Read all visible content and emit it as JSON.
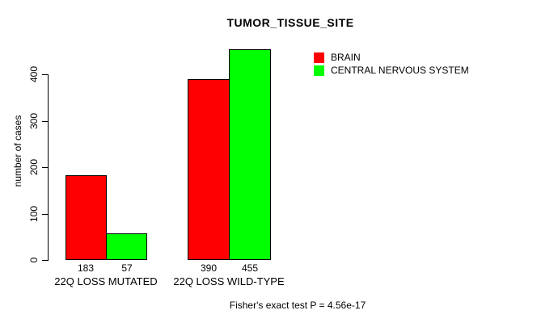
{
  "title": "TUMOR_TISSUE_SITE",
  "footer": "Fisher's exact test P = 4.56e-17",
  "chart_data": {
    "type": "bar",
    "title": "TUMOR_TISSUE_SITE",
    "categories": [
      "22Q LOSS MUTATED",
      "22Q LOSS WILD-TYPE"
    ],
    "series": [
      {
        "name": "BRAIN",
        "color": "#ff0000",
        "values": [
          183,
          390
        ]
      },
      {
        "name": "CENTRAL NERVOUS SYSTEM",
        "color": "#00ff00",
        "values": [
          57,
          455
        ]
      }
    ],
    "xlabel": "",
    "ylabel": "number of cases",
    "yticks": [
      0,
      100,
      200,
      300,
      400
    ],
    "ylim": [
      0,
      460
    ],
    "grid": false,
    "legend_position": "top-right",
    "bar_borders": "#000000",
    "annotation": "Fisher's exact test P = 4.56e-17"
  }
}
